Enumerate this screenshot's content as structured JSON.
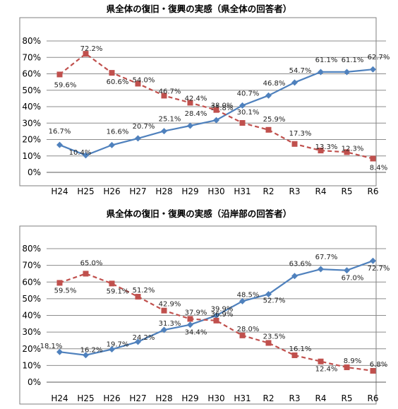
{
  "colors": {
    "blue": "#4f81bd",
    "red": "#c0504d",
    "grid": "#8c8c8c",
    "frame": "#7f7f7f"
  },
  "chart_data": [
    {
      "type": "line",
      "title": "県全体の復旧・復興の実感（県全体の回答者）",
      "categories": [
        "H24",
        "H25",
        "H26",
        "H27",
        "H28",
        "H29",
        "H30",
        "H31",
        "R2",
        "R3",
        "R4",
        "R5",
        "R6"
      ],
      "ylim": [
        0,
        80
      ],
      "y_ticks": [
        "0%",
        "10%",
        "20%",
        "30%",
        "40%",
        "50%",
        "60%",
        "70%",
        "80%"
      ],
      "grid": true,
      "series": [
        {
          "style": "solid",
          "color": "#4f81bd",
          "marker": "diamond",
          "values": [
            16.7,
            10.4,
            16.6,
            20.7,
            25.1,
            28.4,
            31.8,
            40.7,
            46.8,
            54.7,
            61.1,
            61.1,
            62.7
          ],
          "labels": [
            "16.7%",
            "10.4%",
            "16.6%",
            "20.7%",
            "25.1%",
            "28.4%",
            "31.8%",
            "40.7%",
            "46.8%",
            "54.7%",
            "61.1%",
            "61.1%",
            "62.7%"
          ]
        },
        {
          "style": "dashed",
          "color": "#c0504d",
          "marker": "square",
          "values": [
            59.6,
            72.2,
            60.6,
            54.0,
            46.7,
            42.4,
            38.0,
            30.1,
            25.9,
            17.3,
            13.3,
            12.3,
            8.4
          ],
          "labels": [
            "59.6%",
            "72.2%",
            "60.6%",
            "54.0%",
            "46.7%",
            "42.4%",
            "38.0%",
            "30.1%",
            "25.9%",
            "17.3%",
            "13.3%",
            "12.3%",
            "8.4%"
          ]
        }
      ]
    },
    {
      "type": "line",
      "title": "県全体の復旧・復興の実感（沿岸部の回答者）",
      "categories": [
        "H24",
        "H25",
        "H26",
        "H27",
        "H28",
        "H29",
        "H30",
        "H31",
        "R2",
        "R3",
        "R4",
        "R5",
        "R6"
      ],
      "ylim": [
        0,
        80
      ],
      "y_ticks": [
        "0%",
        "10%",
        "20%",
        "30%",
        "40%",
        "50%",
        "60%",
        "70%",
        "80%"
      ],
      "grid": true,
      "series": [
        {
          "style": "solid",
          "color": "#4f81bd",
          "marker": "diamond",
          "values": [
            18.1,
            16.2,
            19.7,
            24.2,
            31.3,
            34.4,
            39.9,
            48.5,
            52.7,
            63.6,
            67.7,
            67.0,
            72.7
          ],
          "labels": [
            "18.1%",
            "16.2%",
            "19.7%",
            "24.2%",
            "31.3%",
            "34.4%",
            "39.9%",
            "48.5%",
            "52.7%",
            "63.6%",
            "67.7%",
            "67.0%",
            "72.7%"
          ]
        },
        {
          "style": "dashed",
          "color": "#c0504d",
          "marker": "square",
          "values": [
            59.5,
            65.0,
            59.1,
            51.2,
            42.9,
            37.9,
            36.9,
            28.0,
            23.5,
            16.1,
            12.4,
            8.9,
            6.8
          ],
          "labels": [
            "59.5%",
            "65.0%",
            "59.1%",
            "51.2%",
            "42.9%",
            "37.9%",
            "36.9%",
            "28.0%",
            "23.5%",
            "16.1%",
            "12.4%",
            "8.9%",
            "6.8%"
          ]
        }
      ]
    }
  ]
}
